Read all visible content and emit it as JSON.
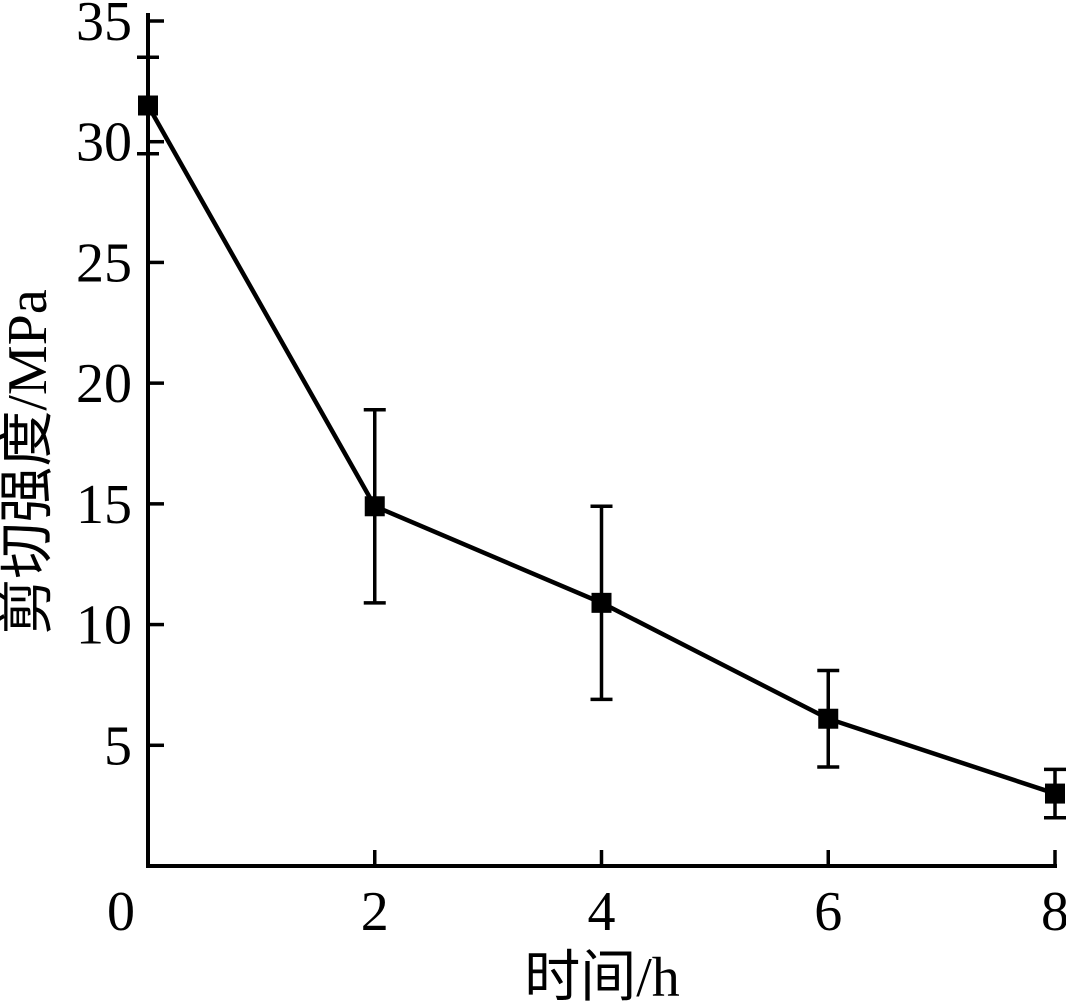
{
  "figure": {
    "background_color": "#ffffff",
    "ink_color": "#000000"
  },
  "chart_data": {
    "type": "line",
    "title": "",
    "xlabel": "时间/h",
    "ylabel": "剪切强度/MPa",
    "x": [
      0,
      2,
      4,
      6,
      8
    ],
    "series": [
      {
        "name": "剪切强度",
        "values": [
          31.5,
          14.9,
          10.9,
          6.1,
          3.0
        ],
        "error_bars": [
          2.0,
          4.0,
          4.0,
          2.0,
          1.0
        ],
        "marker": "filled-square",
        "color": "#000000"
      }
    ],
    "xlim": [
      0,
      8
    ],
    "ylim": [
      0,
      35
    ],
    "x_tick_marks": [
      2,
      4,
      6,
      8
    ],
    "x_tick_labels": [
      {
        "value": 0,
        "label": "0"
      },
      {
        "value": 2,
        "label": "2"
      },
      {
        "value": 4,
        "label": "4"
      },
      {
        "value": 6,
        "label": "6"
      },
      {
        "value": 8,
        "label": "8"
      }
    ],
    "y_ticks": [
      5,
      10,
      15,
      20,
      25,
      30,
      35
    ],
    "grid": false,
    "legend": "none"
  }
}
